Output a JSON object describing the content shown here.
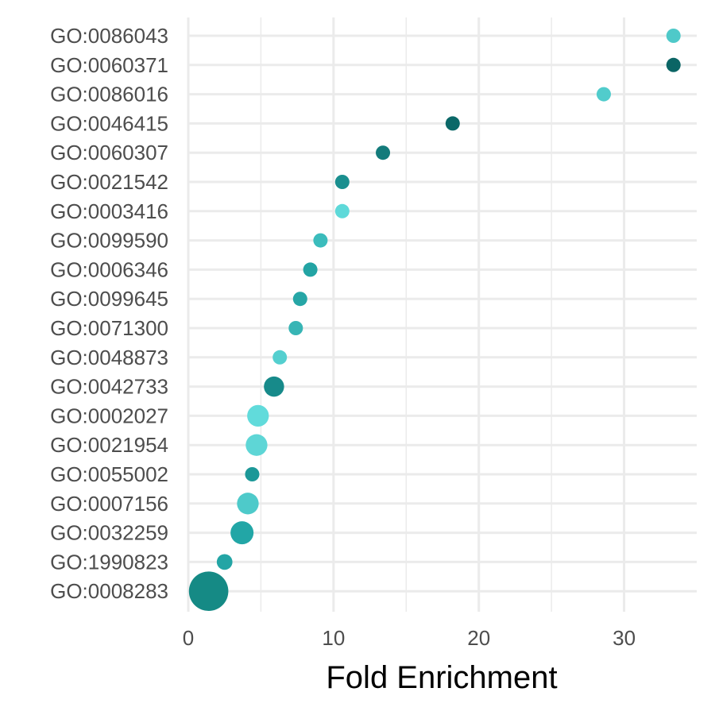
{
  "chart_data": {
    "type": "scatter",
    "xlabel": "Fold Enrichment",
    "ylabel": "",
    "title": "",
    "xlim": [
      0,
      35
    ],
    "x_ticks": [
      0,
      10,
      20,
      30
    ],
    "x_tick_labels": [
      "0",
      "10",
      "20",
      "30"
    ],
    "grid": true,
    "legend": "none",
    "categories": [
      "GO:0086043",
      "GO:0060371",
      "GO:0086016",
      "GO:0046415",
      "GO:0060307",
      "GO:0021542",
      "GO:0003416",
      "GO:0099590",
      "GO:0006346",
      "GO:0099645",
      "GO:0071300",
      "GO:0048873",
      "GO:0042733",
      "GO:0002027",
      "GO:0021954",
      "GO:0055002",
      "GO:0007156",
      "GO:0032259",
      "GO:1990823",
      "GO:0008283"
    ],
    "points": [
      {
        "category": "GO:0086043",
        "x": 33.4,
        "size": 1,
        "color": "#4fc9c9"
      },
      {
        "category": "GO:0060371",
        "x": 33.4,
        "size": 1,
        "color": "#0b6565"
      },
      {
        "category": "GO:0086016",
        "x": 28.6,
        "size": 1,
        "color": "#51cccc"
      },
      {
        "category": "GO:0046415",
        "x": 18.2,
        "size": 1,
        "color": "#0b6868"
      },
      {
        "category": "GO:0060307",
        "x": 13.4,
        "size": 1,
        "color": "#137b7b"
      },
      {
        "category": "GO:0021542",
        "x": 10.6,
        "size": 1,
        "color": "#1a8f8f"
      },
      {
        "category": "GO:0003416",
        "x": 10.6,
        "size": 1,
        "color": "#5ed9d9"
      },
      {
        "category": "GO:0099590",
        "x": 9.1,
        "size": 1,
        "color": "#3bbcbc"
      },
      {
        "category": "GO:0006346",
        "x": 8.4,
        "size": 1,
        "color": "#23a4a4"
      },
      {
        "category": "GO:0099645",
        "x": 7.7,
        "size": 1,
        "color": "#26a6a6"
      },
      {
        "category": "GO:0071300",
        "x": 7.4,
        "size": 1,
        "color": "#37b5b5"
      },
      {
        "category": "GO:0048873",
        "x": 6.3,
        "size": 1,
        "color": "#54cfcf"
      },
      {
        "category": "GO:0042733",
        "x": 5.9,
        "size": 2,
        "color": "#178a8a"
      },
      {
        "category": "GO:0002027",
        "x": 4.8,
        "size": 2.3,
        "color": "#61dbdb"
      },
      {
        "category": "GO:0021954",
        "x": 4.7,
        "size": 2.3,
        "color": "#5ed6d6"
      },
      {
        "category": "GO:0055002",
        "x": 4.4,
        "size": 1,
        "color": "#1c9898"
      },
      {
        "category": "GO:0007156",
        "x": 4.1,
        "size": 2.3,
        "color": "#4ecaca"
      },
      {
        "category": "GO:0032259",
        "x": 3.7,
        "size": 2.6,
        "color": "#22a6a6"
      },
      {
        "category": "GO:1990823",
        "x": 2.5,
        "size": 1.2,
        "color": "#23a5a5"
      },
      {
        "category": "GO:0008283",
        "x": 1.4,
        "size": 7.6,
        "color": "#158a85"
      }
    ]
  }
}
